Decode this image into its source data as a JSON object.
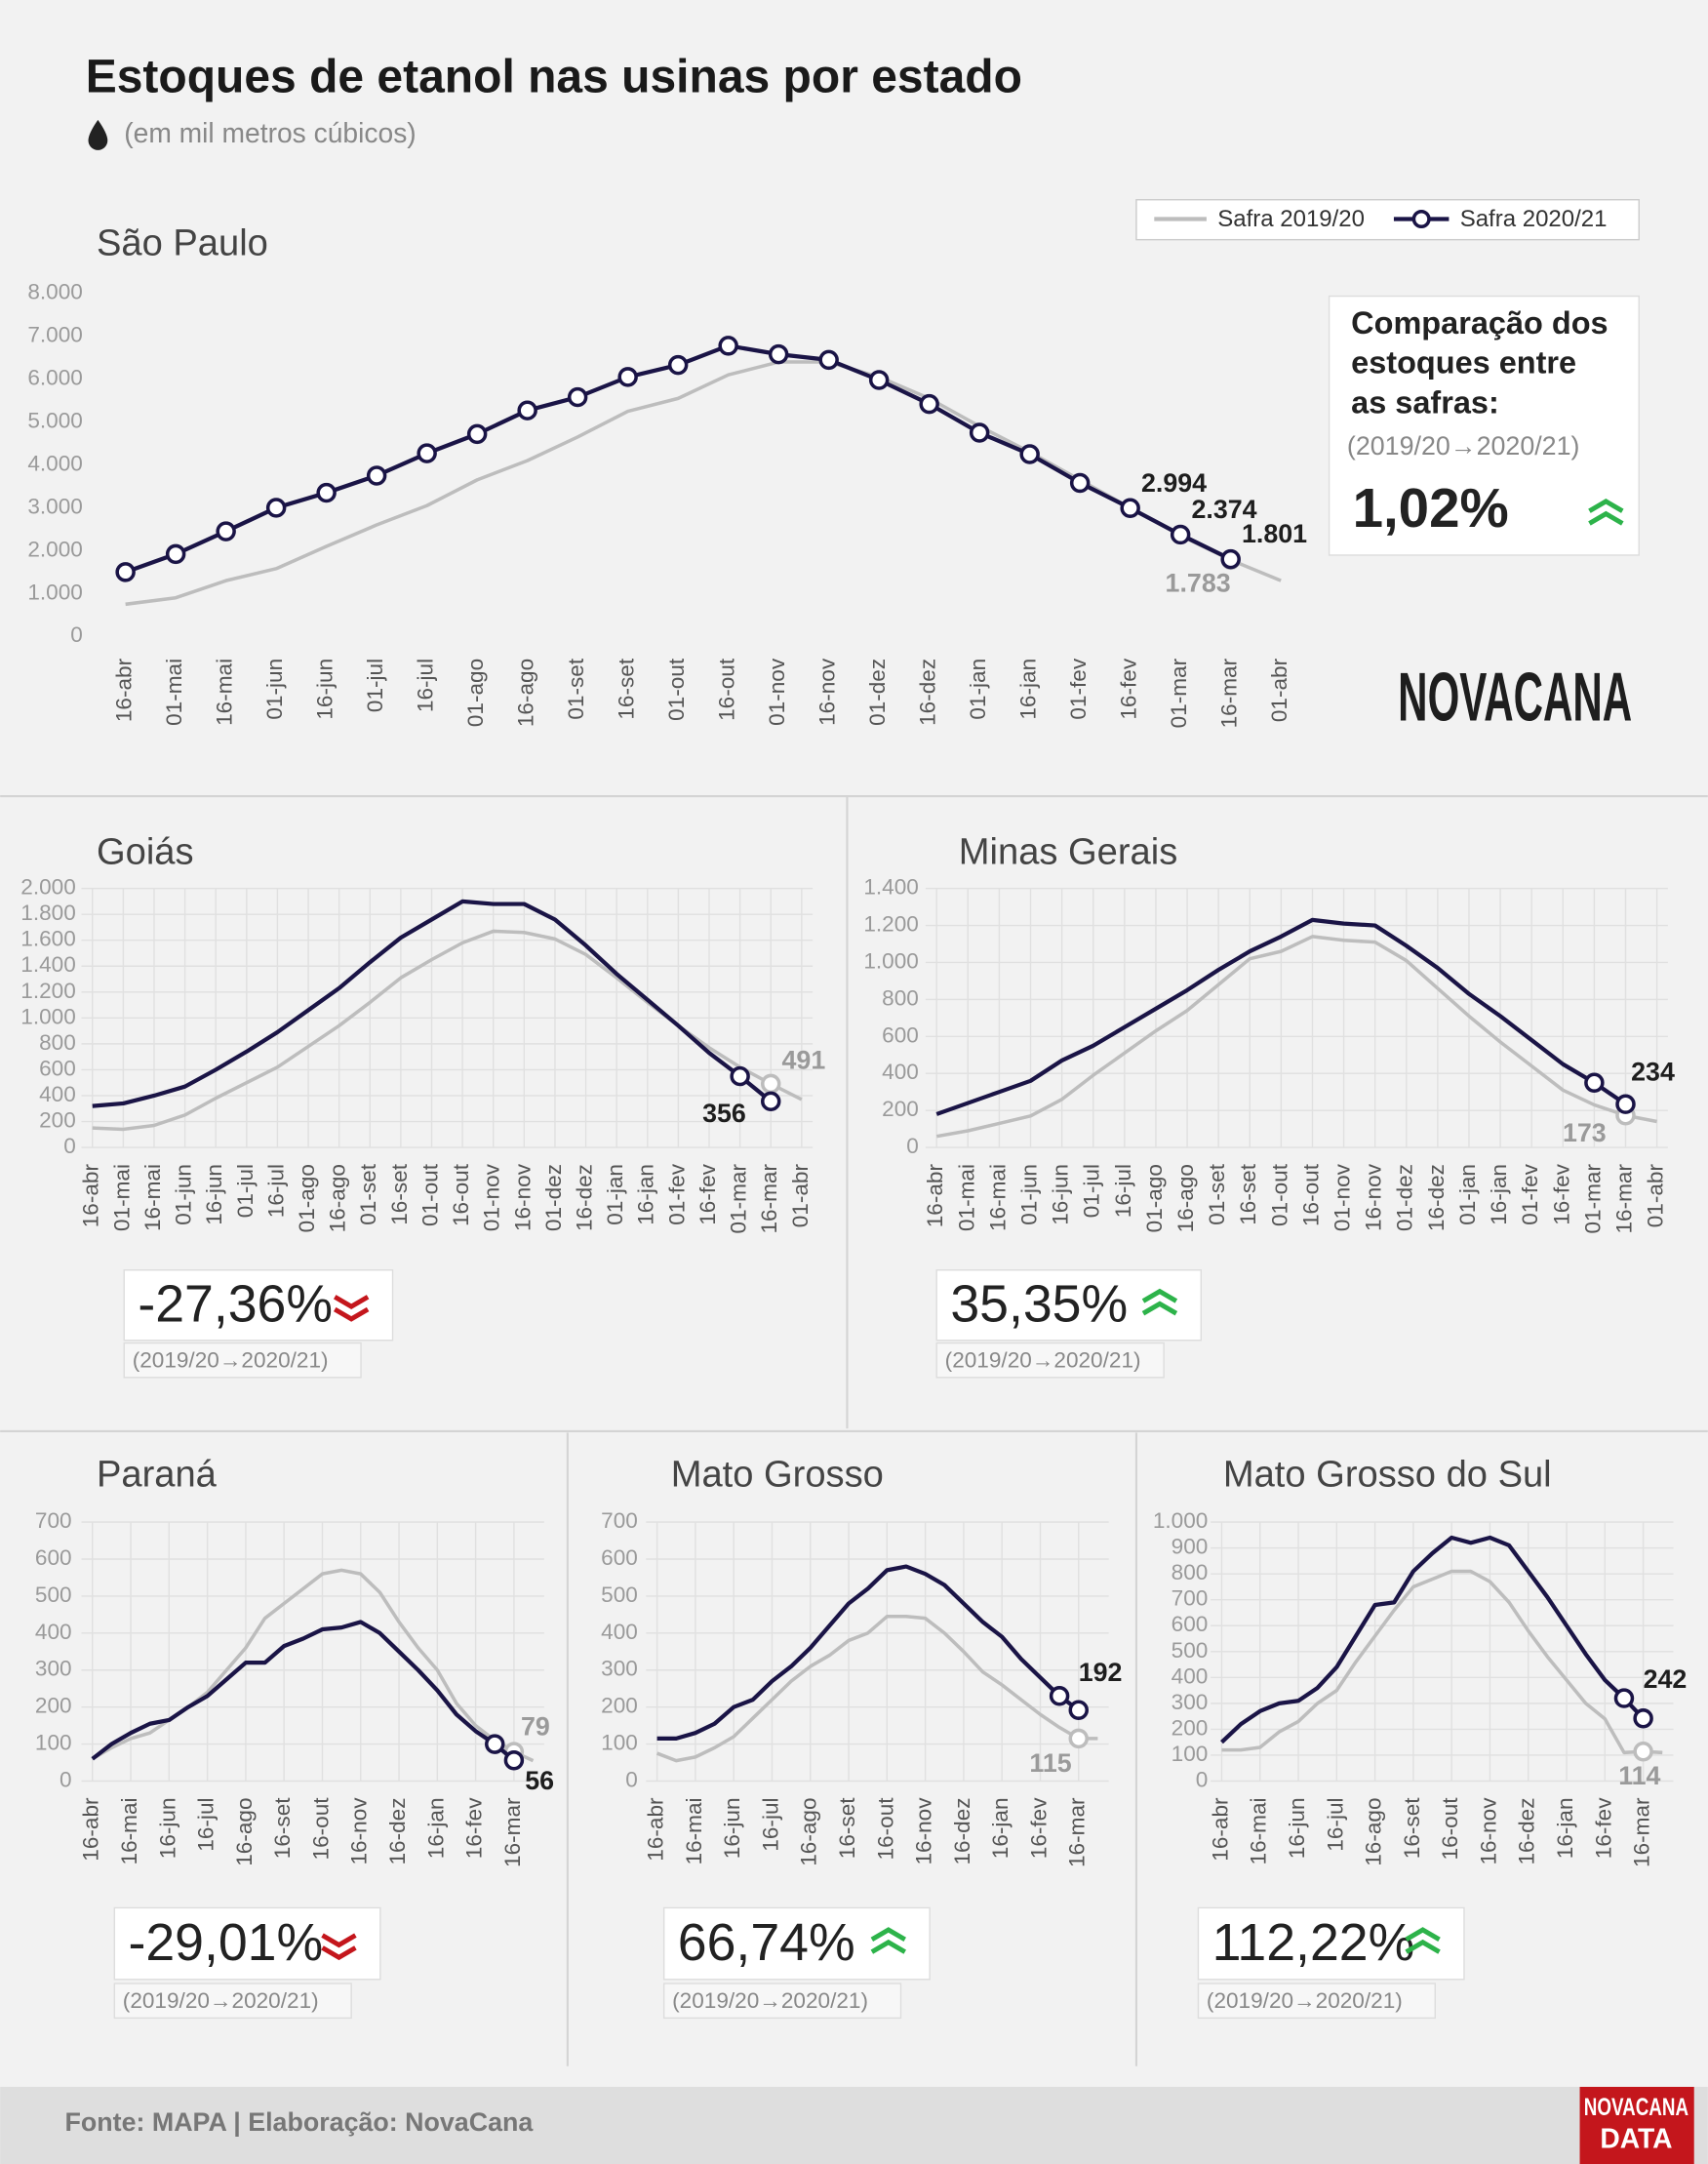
{
  "header": {
    "title": "Estoques de etanol nas usinas por estado",
    "subtitle": "(em mil metros cúbicos)"
  },
  "logo": "NOVACANA",
  "footer": {
    "source": "Fonte: MAPA  | Elaboração: NovaCana",
    "logo": [
      "NOVACANA",
      "DATA"
    ]
  },
  "chart_data": [
    {
      "type": "line",
      "title": "São Paulo",
      "grid": false,
      "categories": [
        "16-abr",
        "01-mai",
        "16-mai",
        "01-jun",
        "16-jun",
        "01-jul",
        "16-jul",
        "01-ago",
        "16-ago",
        "01-set",
        "16-set",
        "01-out",
        "16-out",
        "01-nov",
        "16-nov",
        "01-dez",
        "16-dez",
        "01-jan",
        "16-jan",
        "01-fev",
        "16-fev",
        "01-mar",
        "16-mar",
        "01-abr"
      ],
      "ylim": [
        0,
        8000
      ],
      "yticks": [
        0,
        {
          "value": 1000,
          "label": "1.000"
        },
        {
          "value": 2000,
          "label": "2.000"
        },
        {
          "value": 3000,
          "label": "3.000"
        },
        {
          "value": 4000,
          "label": "4.000"
        },
        {
          "value": 5000,
          "label": "5.000"
        },
        {
          "value": 6000,
          "label": "6.000"
        },
        {
          "value": 7000,
          "label": "7.000"
        },
        {
          "value": 8000,
          "label": "8.000"
        }
      ],
      "series": [
        {
          "name": "Safra 2019/20",
          "color": "#bdbdbd",
          "values": [
            750,
            900,
            1300,
            1580,
            2100,
            2600,
            3050,
            3650,
            4100,
            4650,
            5250,
            5550,
            6100,
            6400,
            6400,
            6050,
            5550,
            4900,
            4300,
            3650,
            3000,
            2350,
            1783,
            1300
          ],
          "value_labels": [
            null,
            null,
            null,
            null,
            null,
            null,
            null,
            null,
            null,
            null,
            null,
            null,
            null,
            null,
            null,
            null,
            null,
            null,
            null,
            null,
            null,
            null,
            "1.783",
            null
          ]
        },
        {
          "name": "Safra 2020/21",
          "color": "#1a1446",
          "markers": "all",
          "values": [
            1500,
            1920,
            2450,
            3000,
            3350,
            3750,
            4270,
            4720,
            5270,
            5580,
            6050,
            6330,
            6780,
            6580,
            6450,
            5980,
            5420,
            4750,
            4250,
            3580,
            2994,
            2374,
            1801,
            null
          ],
          "value_labels": [
            null,
            null,
            null,
            null,
            null,
            null,
            null,
            null,
            null,
            null,
            null,
            null,
            null,
            null,
            null,
            null,
            null,
            null,
            null,
            null,
            "2.994",
            "2.374",
            "1.801",
            null
          ]
        }
      ],
      "comparison_title": [
        "Comparação dos",
        "estoques entre",
        "as safras:"
      ],
      "comparison_period": "(2019/20→2020/21)",
      "comparison": "1,02%"
    },
    {
      "type": "line",
      "title": "Goiás",
      "grid": true,
      "categories": [
        "16-abr",
        "01-mai",
        "16-mai",
        "01-jun",
        "16-jun",
        "01-jul",
        "16-jul",
        "01-ago",
        "16-ago",
        "01-set",
        "16-set",
        "01-out",
        "16-out",
        "01-nov",
        "16-nov",
        "01-dez",
        "16-dez",
        "01-jan",
        "16-jan",
        "01-fev",
        "16-fev",
        "01-mar",
        "16-mar",
        "01-abr"
      ],
      "ylim": [
        0,
        2000
      ],
      "yticks": [
        0,
        200,
        400,
        600,
        800,
        {
          "value": 1000,
          "label": "1.000"
        },
        {
          "value": 1200,
          "label": "1.200"
        },
        {
          "value": 1400,
          "label": "1.400"
        },
        {
          "value": 1600,
          "label": "1.600"
        },
        {
          "value": 1800,
          "label": "1.800"
        },
        {
          "value": 2000,
          "label": "2.000"
        }
      ],
      "series": [
        {
          "color": "#bdbdbd",
          "values": [
            150,
            140,
            170,
            250,
            380,
            500,
            620,
            780,
            940,
            1120,
            1310,
            1450,
            1580,
            1670,
            1660,
            1610,
            1490,
            1310,
            1120,
            940,
            770,
            620,
            491,
            370
          ],
          "value_labels": [
            null,
            null,
            null,
            null,
            null,
            null,
            null,
            null,
            null,
            null,
            null,
            null,
            null,
            null,
            null,
            null,
            null,
            null,
            null,
            null,
            null,
            null,
            "491",
            null
          ]
        },
        {
          "color": "#1a1446",
          "values": [
            320,
            340,
            400,
            470,
            600,
            740,
            890,
            1060,
            1230,
            1430,
            1620,
            1760,
            1900,
            1880,
            1880,
            1760,
            1560,
            1340,
            1140,
            940,
            730,
            550,
            356,
            null
          ],
          "value_labels": [
            null,
            null,
            null,
            null,
            null,
            null,
            null,
            null,
            null,
            null,
            null,
            null,
            null,
            null,
            null,
            null,
            null,
            null,
            null,
            null,
            null,
            null,
            "356",
            null
          ]
        }
      ],
      "comparison_period": "(2019/20→2020/21)",
      "comparison": "-27,36%"
    },
    {
      "type": "line",
      "title": "Minas Gerais",
      "grid": true,
      "categories": [
        "16-abr",
        "01-mai",
        "16-mai",
        "01-jun",
        "16-jun",
        "01-jul",
        "16-jul",
        "01-ago",
        "16-ago",
        "01-set",
        "16-set",
        "01-out",
        "16-out",
        "01-nov",
        "16-nov",
        "01-dez",
        "16-dez",
        "01-jan",
        "16-jan",
        "01-fev",
        "16-fev",
        "01-mar",
        "16-mar",
        "01-abr"
      ],
      "ylim": [
        0,
        1400
      ],
      "yticks": [
        0,
        200,
        400,
        600,
        800,
        {
          "value": 1000,
          "label": "1.000"
        },
        {
          "value": 1200,
          "label": "1.200"
        },
        {
          "value": 1400,
          "label": "1.400"
        }
      ],
      "series": [
        {
          "color": "#bdbdbd",
          "values": [
            60,
            90,
            130,
            170,
            260,
            390,
            510,
            630,
            740,
            880,
            1020,
            1060,
            1140,
            1120,
            1110,
            1010,
            860,
            710,
            570,
            440,
            310,
            230,
            173,
            140
          ],
          "value_labels": [
            null,
            null,
            null,
            null,
            null,
            null,
            null,
            null,
            null,
            null,
            null,
            null,
            null,
            null,
            null,
            null,
            null,
            null,
            null,
            null,
            null,
            null,
            "173",
            null
          ]
        },
        {
          "color": "#1a1446",
          "values": [
            180,
            240,
            300,
            360,
            470,
            550,
            650,
            750,
            850,
            960,
            1060,
            1140,
            1230,
            1210,
            1200,
            1090,
            970,
            830,
            710,
            580,
            450,
            350,
            234,
            null
          ],
          "value_labels": [
            null,
            null,
            null,
            null,
            null,
            null,
            null,
            null,
            null,
            null,
            null,
            null,
            null,
            null,
            null,
            null,
            null,
            null,
            null,
            null,
            null,
            null,
            "234",
            null
          ]
        }
      ],
      "comparison_period": "(2019/20→2020/21)",
      "comparison": "35,35%"
    },
    {
      "type": "line",
      "title": "Paraná",
      "grid": true,
      "categories": [
        "16-abr",
        null,
        "16-mai",
        null,
        "16-jun",
        null,
        "16-jul",
        null,
        "16-ago",
        null,
        "16-set",
        null,
        "16-out",
        null,
        "16-nov",
        null,
        "16-dez",
        null,
        "16-jan",
        null,
        "16-fev",
        null,
        "16-mar",
        null
      ],
      "ylim": [
        0,
        700
      ],
      "yticks": [
        0,
        100,
        200,
        300,
        400,
        500,
        600,
        700
      ],
      "series": [
        {
          "color": "#bdbdbd",
          "values": [
            60,
            90,
            115,
            130,
            165,
            200,
            240,
            300,
            360,
            440,
            480,
            520,
            560,
            570,
            560,
            510,
            430,
            360,
            300,
            210,
            150,
            110,
            79,
            55
          ],
          "value_labels": [
            null,
            null,
            null,
            null,
            null,
            null,
            null,
            null,
            null,
            null,
            null,
            null,
            null,
            null,
            null,
            null,
            null,
            null,
            null,
            null,
            null,
            null,
            "79",
            null
          ]
        },
        {
          "color": "#1a1446",
          "values": [
            60,
            100,
            130,
            155,
            165,
            200,
            230,
            275,
            320,
            320,
            365,
            385,
            410,
            415,
            430,
            400,
            350,
            300,
            245,
            180,
            135,
            100,
            56,
            null
          ],
          "value_labels": [
            null,
            null,
            null,
            null,
            null,
            null,
            null,
            null,
            null,
            null,
            null,
            null,
            null,
            null,
            null,
            null,
            null,
            null,
            null,
            null,
            null,
            null,
            "56",
            null
          ]
        }
      ],
      "comparison_period": "(2019/20→2020/21)",
      "comparison": "-29,01%"
    },
    {
      "type": "line",
      "title": "Mato Grosso",
      "grid": true,
      "categories": [
        "16-abr",
        null,
        "16-mai",
        null,
        "16-jun",
        null,
        "16-jul",
        null,
        "16-ago",
        null,
        "16-set",
        null,
        "16-out",
        null,
        "16-nov",
        null,
        "16-dez",
        null,
        "16-jan",
        null,
        "16-fev",
        null,
        "16-mar",
        null
      ],
      "ylim": [
        0,
        700
      ],
      "yticks": [
        0,
        100,
        200,
        300,
        400,
        500,
        600,
        700
      ],
      "series": [
        {
          "color": "#bdbdbd",
          "values": [
            75,
            55,
            65,
            90,
            120,
            170,
            220,
            270,
            310,
            340,
            380,
            400,
            445,
            445,
            440,
            400,
            350,
            295,
            260,
            220,
            180,
            145,
            115,
            115
          ],
          "value_labels": [
            null,
            null,
            null,
            null,
            null,
            null,
            null,
            null,
            null,
            null,
            null,
            null,
            null,
            null,
            null,
            null,
            null,
            null,
            null,
            null,
            null,
            null,
            "115",
            null
          ]
        },
        {
          "color": "#1a1446",
          "values": [
            115,
            115,
            130,
            155,
            200,
            220,
            270,
            310,
            360,
            420,
            480,
            520,
            570,
            580,
            560,
            530,
            480,
            430,
            390,
            330,
            280,
            230,
            192,
            null
          ],
          "value_labels": [
            null,
            null,
            null,
            null,
            null,
            null,
            null,
            null,
            null,
            null,
            null,
            null,
            null,
            null,
            null,
            null,
            null,
            null,
            null,
            null,
            null,
            null,
            "192",
            null
          ]
        }
      ],
      "comparison_period": "(2019/20→2020/21)",
      "comparison": "66,74%"
    },
    {
      "type": "line",
      "title": "Mato Grosso do Sul",
      "grid": true,
      "categories": [
        "16-abr",
        null,
        "16-mai",
        null,
        "16-jun",
        null,
        "16-jul",
        null,
        "16-ago",
        null,
        "16-set",
        null,
        "16-out",
        null,
        "16-nov",
        null,
        "16-dez",
        null,
        "16-jan",
        null,
        "16-fev",
        null,
        "16-mar",
        null
      ],
      "ylim": [
        0,
        1000
      ],
      "yticks": [
        0,
        100,
        200,
        300,
        400,
        500,
        600,
        700,
        800,
        900,
        {
          "value": 1000,
          "label": "1.000"
        }
      ],
      "series": [
        {
          "color": "#bdbdbd",
          "values": [
            120,
            120,
            130,
            190,
            230,
            300,
            350,
            460,
            560,
            660,
            750,
            780,
            810,
            810,
            770,
            690,
            580,
            480,
            390,
            300,
            240,
            110,
            114,
            110
          ],
          "value_labels": [
            null,
            null,
            null,
            null,
            null,
            null,
            null,
            null,
            null,
            null,
            null,
            null,
            null,
            null,
            null,
            null,
            null,
            null,
            null,
            null,
            null,
            null,
            "114",
            null
          ]
        },
        {
          "color": "#1a1446",
          "values": [
            150,
            220,
            270,
            300,
            310,
            360,
            440,
            560,
            680,
            690,
            810,
            880,
            940,
            920,
            940,
            910,
            810,
            710,
            600,
            490,
            390,
            320,
            242,
            null
          ],
          "value_labels": [
            null,
            null,
            null,
            null,
            null,
            null,
            null,
            null,
            null,
            null,
            null,
            null,
            null,
            null,
            null,
            null,
            null,
            null,
            null,
            null,
            null,
            null,
            "242",
            null
          ]
        }
      ],
      "comparison_period": "(2019/20→2020/21)",
      "comparison": "112,22%"
    }
  ]
}
